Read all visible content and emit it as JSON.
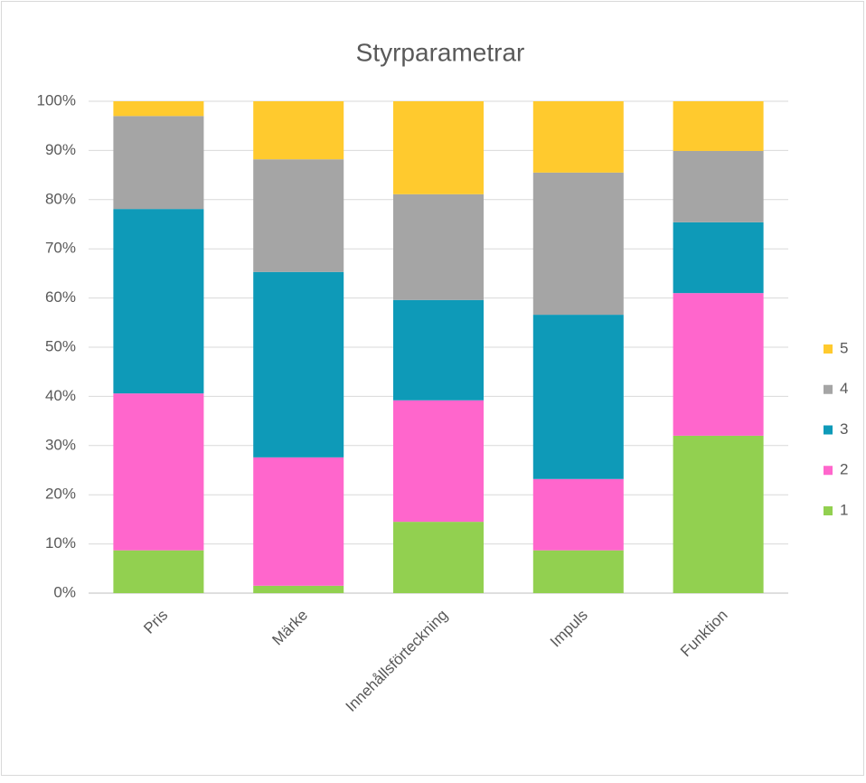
{
  "chart_data": {
    "type": "stacked_bar_100",
    "title": "Styrparametrar",
    "categories": [
      "Pris",
      "Märke",
      "Innehållsförteckning",
      "Impuls",
      "Funktion"
    ],
    "series": [
      {
        "name": "1",
        "color": "#92d050",
        "values": [
          8.7,
          1.5,
          14.5,
          8.7,
          32.0
        ]
      },
      {
        "name": "2",
        "color": "#ff66cc",
        "values": [
          31.9,
          26.1,
          24.7,
          14.5,
          29.0
        ]
      },
      {
        "name": "3",
        "color": "#0e9ab8",
        "values": [
          37.5,
          37.7,
          20.4,
          33.4,
          14.4
        ]
      },
      {
        "name": "4",
        "color": "#a5a5a5",
        "values": [
          18.9,
          22.9,
          21.5,
          28.9,
          14.5
        ]
      },
      {
        "name": "5",
        "color": "#ffca2e",
        "values": [
          3.0,
          11.8,
          18.9,
          14.5,
          10.1
        ]
      }
    ],
    "ylim": [
      0,
      100
    ],
    "yticks": [
      {
        "value": 0,
        "label": "0%"
      },
      {
        "value": 10,
        "label": "10%"
      },
      {
        "value": 20,
        "label": "20%"
      },
      {
        "value": 30,
        "label": "30%"
      },
      {
        "value": 40,
        "label": "40%"
      },
      {
        "value": 50,
        "label": "50%"
      },
      {
        "value": 60,
        "label": "60%"
      },
      {
        "value": 70,
        "label": "70%"
      },
      {
        "value": 80,
        "label": "80%"
      },
      {
        "value": 90,
        "label": "90%"
      },
      {
        "value": 100,
        "label": "100%"
      }
    ],
    "grid": true,
    "legend": "right"
  }
}
